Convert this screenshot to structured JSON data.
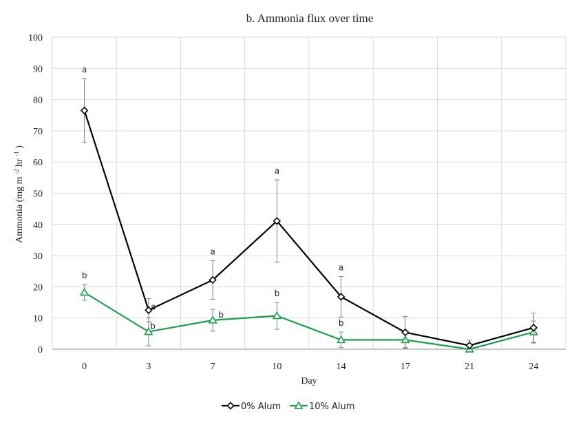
{
  "chart_data": {
    "type": "line",
    "title": "b. Ammonia flux over time",
    "xlabel": "Day",
    "ylabel_main": "Ammonia (mg m",
    "ylabel_sup1": "-2",
    "ylabel_mid": " hr",
    "ylabel_sup2": "-1",
    "ylabel_end": ")",
    "categories": [
      "0",
      "3",
      "7",
      "10",
      "14",
      "17",
      "21",
      "24"
    ],
    "ylim": [
      0,
      100
    ],
    "yticks": [
      0,
      10,
      20,
      30,
      40,
      50,
      60,
      70,
      80,
      90,
      100
    ],
    "grid": true,
    "legend_position": "bottom",
    "series": [
      {
        "name": "0% Alum",
        "color": "#000000",
        "marker": "diamond",
        "values": [
          76.5,
          12.5,
          22.2,
          41.1,
          16.8,
          5.4,
          1.2,
          6.9
        ],
        "error": [
          10.3,
          3.7,
          6.2,
          13.2,
          6.5,
          5.1,
          1.7,
          4.7
        ],
        "labels": [
          "a",
          "a",
          "a",
          "a",
          "a",
          "",
          "",
          ""
        ]
      },
      {
        "name": "10% Alum",
        "color": "#1a9e4a",
        "marker": "triangle",
        "values": [
          18.2,
          5.6,
          9.3,
          10.7,
          3.0,
          3.0,
          0.0,
          5.5
        ],
        "error": [
          2.5,
          4.5,
          3.5,
          4.3,
          2.5,
          2.5,
          0.3,
          3.5
        ],
        "labels": [
          "b",
          "b",
          "b",
          "b",
          "b",
          "",
          "",
          ""
        ]
      }
    ]
  }
}
